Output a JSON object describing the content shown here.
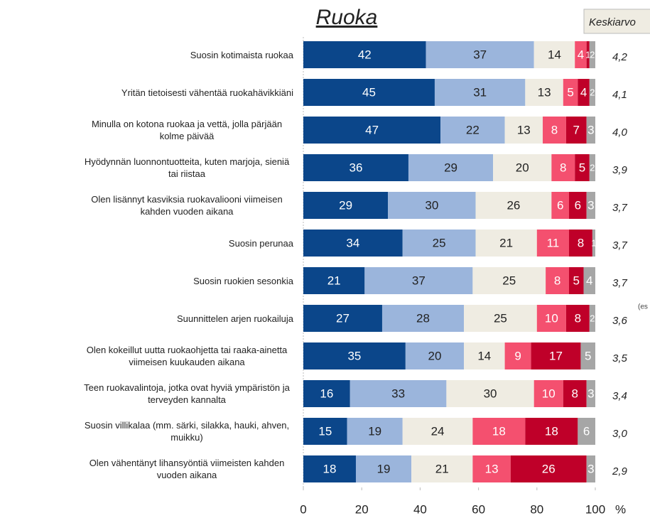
{
  "chart_data": {
    "type": "stacked-bar-horizontal",
    "title": "Ruoka",
    "average_header": "Keskiarvo",
    "note": "(es",
    "x_unit": "%",
    "categories": [
      "Suosin kotimaista ruokaa",
      "Yritän tietoisesti vähentää ruokahävikkiäni",
      "Minulla on kotona ruokaa ja vettä, jolla pärjään kolme päivää",
      "Hyödynnän luonnontuotteita, kuten marjoja, sieniä tai riistaa",
      "Olen lisännyt kasviksia ruokavaliooni viimeisen kahden vuoden aikana",
      "Suosin perunaa",
      "Suosin ruokien sesonkia",
      "Suunnittelen arjen ruokailuja",
      "Olen kokeillut uutta ruokaohjetta tai raaka-ainetta viimeisen kuukauden aikana",
      "Teen ruokavalintoja, jotka ovat hyviä ympäristön ja terveyden kannalta",
      "Suosin villikalaa (mm. särki, silakka, hauki, ahven, muikku)",
      "Olen vähentänyt lihansyöntiä viimeisten kahden vuoden aikana"
    ],
    "series": [
      {
        "color": "#0b468a",
        "values": [
          42,
          45,
          47,
          36,
          29,
          34,
          21,
          27,
          35,
          16,
          15,
          18
        ]
      },
      {
        "color": "#9bb5dc",
        "values": [
          37,
          31,
          22,
          29,
          30,
          25,
          37,
          28,
          20,
          33,
          19,
          19
        ]
      },
      {
        "color": "#efece2",
        "values": [
          14,
          13,
          13,
          20,
          26,
          21,
          25,
          25,
          14,
          30,
          24,
          21
        ]
      },
      {
        "color": "#f4506f",
        "values": [
          4,
          5,
          8,
          8,
          6,
          11,
          8,
          10,
          9,
          10,
          18,
          13
        ]
      },
      {
        "color": "#bf0029",
        "values": [
          1,
          4,
          7,
          5,
          6,
          8,
          5,
          8,
          17,
          8,
          18,
          26
        ]
      },
      {
        "color": "#a6a6a6",
        "values": [
          2,
          2,
          3,
          2,
          3,
          1,
          4,
          2,
          5,
          3,
          6,
          3
        ]
      }
    ],
    "averages": [
      {
        "value": 4.2,
        "label": "4,2"
      },
      {
        "value": 4.1,
        "label": "4,1"
      },
      {
        "value": 4.0,
        "label": "4,0"
      },
      {
        "value": 3.9,
        "label": "3,9"
      },
      {
        "value": 3.7,
        "label": "3,7"
      },
      {
        "value": 3.7,
        "label": "3,7"
      },
      {
        "value": 3.7,
        "label": "3,7"
      },
      {
        "value": 3.6,
        "label": "3,6"
      },
      {
        "value": 3.5,
        "label": "3,5"
      },
      {
        "value": 3.4,
        "label": "3,4"
      },
      {
        "value": 3.0,
        "label": "3,0"
      },
      {
        "value": 2.9,
        "label": "2,9"
      }
    ],
    "xlim": [
      0,
      100
    ],
    "xticks": [
      0,
      20,
      40,
      60,
      80,
      100
    ]
  }
}
